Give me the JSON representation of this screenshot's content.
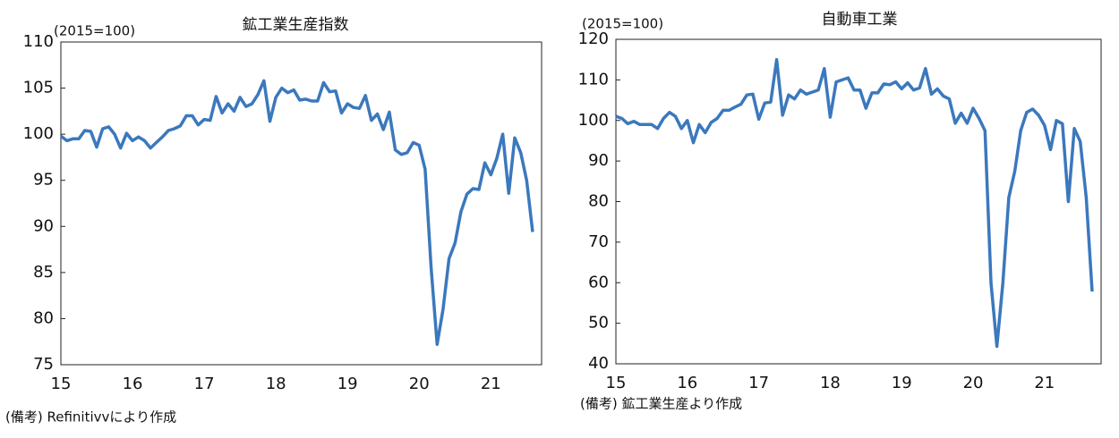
{
  "chart_data": [
    {
      "type": "line",
      "title": "鉱工業生産指数",
      "unit_label": "(2015=100)",
      "note": "(備考) Refinitivvにより作成",
      "categories": [
        "15",
        null,
        null,
        null,
        null,
        null,
        null,
        null,
        null,
        null,
        null,
        null,
        "16",
        null,
        null,
        null,
        null,
        null,
        null,
        null,
        null,
        null,
        null,
        null,
        "17",
        null,
        null,
        null,
        null,
        null,
        null,
        null,
        null,
        null,
        null,
        null,
        "18",
        null,
        null,
        null,
        null,
        null,
        null,
        null,
        null,
        null,
        null,
        null,
        "19",
        null,
        null,
        null,
        null,
        null,
        null,
        null,
        null,
        null,
        null,
        null,
        "20",
        null,
        null,
        null,
        null,
        null,
        null,
        null,
        null,
        null,
        null,
        null,
        "21",
        null,
        null,
        null,
        null,
        null,
        null,
        null
      ],
      "series": [
        {
          "color": "#3b78bd",
          "values": [
            99.8,
            99.3,
            99.5,
            99.5,
            100.4,
            100.3,
            98.6,
            100.6,
            100.8,
            100.0,
            98.5,
            100.1,
            99.3,
            99.7,
            99.3,
            98.5,
            99.1,
            99.7,
            100.4,
            100.6,
            100.9,
            102.0,
            102.0,
            101.0,
            101.6,
            101.5,
            104.1,
            102.3,
            103.3,
            102.5,
            104.0,
            103.0,
            103.3,
            104.3,
            105.8,
            101.4,
            104.0,
            105.0,
            104.5,
            104.8,
            103.7,
            103.8,
            103.6,
            103.6,
            105.6,
            104.6,
            104.7,
            102.3,
            103.3,
            102.9,
            102.8,
            104.2,
            101.5,
            102.2,
            100.5,
            102.4,
            98.3,
            97.8,
            98.0,
            99.1,
            98.8,
            96.2,
            85.5,
            77.2,
            81.0,
            86.5,
            88.2,
            91.6,
            93.5,
            94.1,
            94.0,
            96.9,
            95.6,
            97.4,
            100.0,
            93.6,
            99.6,
            98.0,
            95.0,
            89.4
          ]
        }
      ],
      "ylim": [
        75,
        110
      ],
      "yticks": [
        75,
        80,
        85,
        90,
        95,
        100,
        105,
        110
      ]
    },
    {
      "type": "line",
      "title": "自動車工業",
      "unit_label": "(2015=100)",
      "note": "(備考) 鉱工業生産より作成",
      "categories": [
        "15",
        null,
        null,
        null,
        null,
        null,
        null,
        null,
        null,
        null,
        null,
        null,
        "16",
        null,
        null,
        null,
        null,
        null,
        null,
        null,
        null,
        null,
        null,
        null,
        "17",
        null,
        null,
        null,
        null,
        null,
        null,
        null,
        null,
        null,
        null,
        null,
        "18",
        null,
        null,
        null,
        null,
        null,
        null,
        null,
        null,
        null,
        null,
        null,
        "19",
        null,
        null,
        null,
        null,
        null,
        null,
        null,
        null,
        null,
        null,
        null,
        "20",
        null,
        null,
        null,
        null,
        null,
        null,
        null,
        null,
        null,
        null,
        null,
        "21",
        null,
        null,
        null,
        null,
        null,
        null,
        null,
        null
      ],
      "series": [
        {
          "color": "#3b78bd",
          "values": [
            101,
            100.5,
            99.2,
            99.8,
            99,
            99,
            99,
            98,
            100.5,
            102,
            101,
            98,
            100,
            94.5,
            99,
            97,
            99.5,
            100.5,
            102.5,
            102.5,
            103.3,
            104,
            106.3,
            106.5,
            100.3,
            104.3,
            104.5,
            115,
            101.3,
            106.3,
            105.3,
            107.5,
            106.5,
            107,
            107.5,
            112.8,
            100.8,
            109.5,
            110,
            110.5,
            107.5,
            107.5,
            103,
            106.8,
            106.8,
            109,
            108.8,
            109.5,
            107.8,
            109.3,
            107.5,
            108,
            112.8,
            106.5,
            107.8,
            106,
            105.3,
            99.3,
            101.8,
            99.3,
            103,
            100.5,
            97.5,
            60,
            44.3,
            60,
            81,
            87.5,
            97.5,
            102,
            102.8,
            101.3,
            98.8,
            92.8,
            100,
            99.2,
            80,
            98,
            94.8,
            81,
            57.8
          ]
        }
      ],
      "ylim": [
        40,
        120
      ],
      "yticks": [
        40,
        50,
        60,
        70,
        80,
        90,
        100,
        110,
        120
      ]
    }
  ]
}
